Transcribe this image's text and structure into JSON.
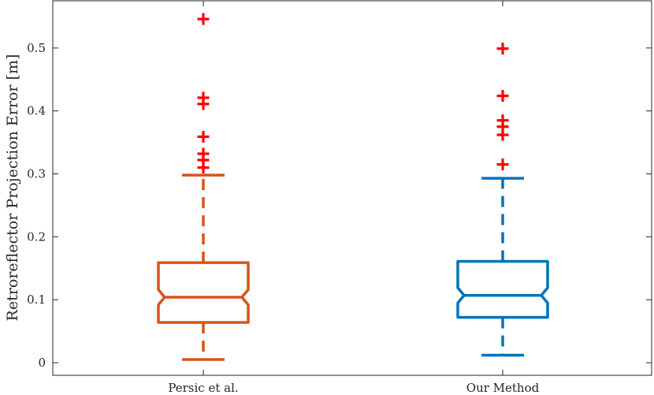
{
  "chart_data": {
    "type": "boxplot",
    "ylabel": "Retroreflector Projection Error [m]",
    "ylim": [
      -0.02,
      0.575
    ],
    "yticks": [
      0,
      0.1,
      0.2,
      0.3,
      0.4,
      0.5
    ],
    "ytick_labels": [
      "0",
      "0.1",
      "0.2",
      "0.3",
      "0.4",
      "0.5"
    ],
    "notched": true,
    "grid": false,
    "outlier_color": "#ff0000",
    "categories": [
      "Persic et al.",
      "Our Method"
    ],
    "series": [
      {
        "category": "Persic et al.",
        "color": "#d95319",
        "whisker_low": 0.005,
        "q1": 0.064,
        "median": 0.104,
        "q3": 0.159,
        "whisker_high": 0.298,
        "notch_low": 0.092,
        "notch_high": 0.116,
        "outliers": [
          0.546,
          0.421,
          0.411,
          0.359,
          0.332,
          0.322,
          0.31
        ]
      },
      {
        "category": "Our Method",
        "color": "#0072bd",
        "whisker_low": 0.012,
        "q1": 0.072,
        "median": 0.107,
        "q3": 0.161,
        "whisker_high": 0.293,
        "notch_low": 0.095,
        "notch_high": 0.119,
        "outliers": [
          0.499,
          0.424,
          0.385,
          0.375,
          0.362,
          0.315
        ]
      }
    ]
  }
}
